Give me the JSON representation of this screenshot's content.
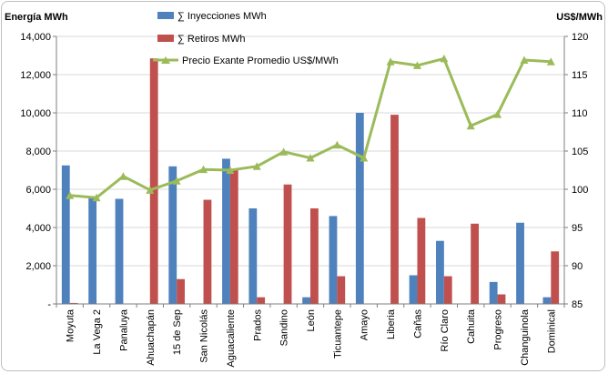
{
  "chart_data": {
    "type": "bar",
    "title": "",
    "ylabel": "Energía MWh",
    "y2label": "US$/MWh",
    "ylim": [
      0,
      14000
    ],
    "y2lim": [
      85,
      120
    ],
    "yticks": [
      "-",
      "2,000",
      "4,000",
      "6,000",
      "8,000",
      "10,000",
      "12,000",
      "14,000"
    ],
    "y2ticks": [
      "85",
      "90",
      "95",
      "100",
      "105",
      "110",
      "115",
      "120"
    ],
    "categories": [
      "Moyuta",
      "La Vega 2",
      "Panaluya",
      "Ahuachapán",
      "15 de Sep",
      "San Nicolás",
      "Aguacaliente",
      "Prados",
      "Sandino",
      "León",
      "Ticuantepe",
      "Amayo",
      "Liberia",
      "Cañas",
      "Río Claro",
      "Cahuita",
      "Progreso",
      "Changuinola",
      "Dominical"
    ],
    "series": [
      {
        "name": "∑ Inyecciones MWh",
        "type": "bar",
        "axis": "left",
        "color": "#4f81bd",
        "values": [
          7250,
          5600,
          5500,
          0,
          7200,
          0,
          7600,
          5000,
          0,
          350,
          4600,
          10000,
          0,
          1500,
          3300,
          0,
          1150,
          4250,
          350
        ]
      },
      {
        "name": "∑ Retiros MWh",
        "type": "bar",
        "axis": "left",
        "color": "#c0504d",
        "values": [
          50,
          0,
          0,
          12850,
          1300,
          5450,
          7000,
          350,
          6250,
          5000,
          1450,
          0,
          9900,
          4500,
          1450,
          4200,
          500,
          0,
          2750
        ]
      },
      {
        "name": "Precio Exante Promedio US$/MWh",
        "type": "line",
        "axis": "right",
        "color": "#9bbb59",
        "values": [
          99.2,
          98.9,
          101.7,
          99.9,
          101.1,
          102.6,
          102.5,
          103.0,
          104.9,
          104.1,
          105.8,
          104.1,
          116.7,
          116.2,
          117.1,
          108.3,
          109.8,
          116.9,
          116.7
        ]
      }
    ],
    "grid": true,
    "legend_position": "top-center"
  }
}
